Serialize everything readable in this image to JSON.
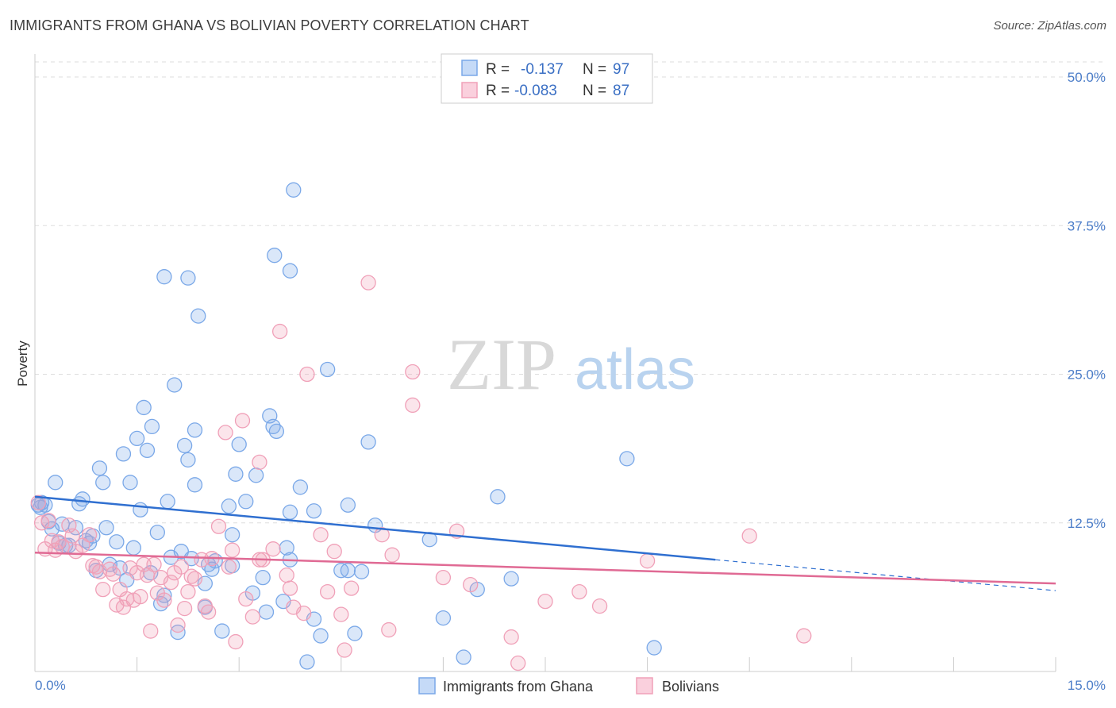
{
  "title": "IMMIGRANTS FROM GHANA VS BOLIVIAN POVERTY CORRELATION CHART",
  "source": "Source: ZipAtlas.com",
  "watermark": {
    "zip": "ZIP",
    "atlas": "atlas"
  },
  "legend": {
    "r_label": "R =",
    "n_label": "N =",
    "rows": [
      {
        "r": "-0.137",
        "n": "97"
      },
      {
        "r": "-0.083",
        "n": "87"
      }
    ]
  },
  "chart_data": {
    "type": "scatter",
    "title": "IMMIGRANTS FROM GHANA VS BOLIVIAN POVERTY CORRELATION CHART",
    "xlabel": "",
    "ylabel": "Poverty",
    "xlim": [
      0,
      15
    ],
    "ylim": [
      0,
      50
    ],
    "x_ticks": [
      "0.0%",
      "15.0%"
    ],
    "y_ticks": [
      {
        "value": 12.5,
        "label": "12.5%"
      },
      {
        "value": 25,
        "label": "25.0%"
      },
      {
        "value": 37.5,
        "label": "37.5%"
      },
      {
        "value": 50,
        "label": "50.0%"
      }
    ],
    "grid": true,
    "legend_position": "bottom",
    "series": [
      {
        "name": "Immigrants from Ghana",
        "color": "#7aa8e8",
        "line_color": "#2f6fd0",
        "trend": {
          "x0": 0,
          "y0": 14.7,
          "x1": 10.0,
          "y1": 9.4,
          "dash_x1": 15.0,
          "dash_y1": 6.8
        },
        "points": [
          [
            0.05,
            14.0
          ],
          [
            0.08,
            13.8
          ],
          [
            0.1,
            14.2
          ],
          [
            0.15,
            14.0
          ],
          [
            0.2,
            12.6
          ],
          [
            0.25,
            12.0
          ],
          [
            0.3,
            15.9
          ],
          [
            0.35,
            10.8
          ],
          [
            0.4,
            12.4
          ],
          [
            0.45,
            10.6
          ],
          [
            0.5,
            10.6
          ],
          [
            0.6,
            12.1
          ],
          [
            0.65,
            14.1
          ],
          [
            0.7,
            14.5
          ],
          [
            0.75,
            11.0
          ],
          [
            0.8,
            10.8
          ],
          [
            0.85,
            11.4
          ],
          [
            0.9,
            8.5
          ],
          [
            0.95,
            17.1
          ],
          [
            1.0,
            15.9
          ],
          [
            1.05,
            12.1
          ],
          [
            1.1,
            9.0
          ],
          [
            1.2,
            10.9
          ],
          [
            1.25,
            8.7
          ],
          [
            1.3,
            18.3
          ],
          [
            1.35,
            7.7
          ],
          [
            1.4,
            15.9
          ],
          [
            1.45,
            10.4
          ],
          [
            1.5,
            19.6
          ],
          [
            1.55,
            13.6
          ],
          [
            1.6,
            22.2
          ],
          [
            1.65,
            18.6
          ],
          [
            1.7,
            8.3
          ],
          [
            1.72,
            20.6
          ],
          [
            1.8,
            11.7
          ],
          [
            1.85,
            5.7
          ],
          [
            1.9,
            6.4
          ],
          [
            1.9,
            33.2
          ],
          [
            1.95,
            14.3
          ],
          [
            2.0,
            9.6
          ],
          [
            2.05,
            24.1
          ],
          [
            2.1,
            3.3
          ],
          [
            2.15,
            10.1
          ],
          [
            2.2,
            19.0
          ],
          [
            2.25,
            33.1
          ],
          [
            2.25,
            17.8
          ],
          [
            2.3,
            9.5
          ],
          [
            2.35,
            20.3
          ],
          [
            2.35,
            15.7
          ],
          [
            2.4,
            29.9
          ],
          [
            2.5,
            7.4
          ],
          [
            2.5,
            5.4
          ],
          [
            2.55,
            9.0
          ],
          [
            2.6,
            8.6
          ],
          [
            2.65,
            9.3
          ],
          [
            2.75,
            3.4
          ],
          [
            2.85,
            13.9
          ],
          [
            2.9,
            11.5
          ],
          [
            2.9,
            8.9
          ],
          [
            2.95,
            16.6
          ],
          [
            3.0,
            19.1
          ],
          [
            3.1,
            14.3
          ],
          [
            3.2,
            6.6
          ],
          [
            3.25,
            16.5
          ],
          [
            3.35,
            7.9
          ],
          [
            3.4,
            5.0
          ],
          [
            3.45,
            21.5
          ],
          [
            3.5,
            20.6
          ],
          [
            3.52,
            35.0
          ],
          [
            3.55,
            20.2
          ],
          [
            3.65,
            5.9
          ],
          [
            3.75,
            13.4
          ],
          [
            3.75,
            33.7
          ],
          [
            3.8,
            40.5
          ],
          [
            3.9,
            15.5
          ],
          [
            4.0,
            0.8
          ],
          [
            4.1,
            4.4
          ],
          [
            4.2,
            3.0
          ],
          [
            4.3,
            25.4
          ],
          [
            4.1,
            13.5
          ],
          [
            4.5,
            8.5
          ],
          [
            4.6,
            14.0
          ],
          [
            4.6,
            8.5
          ],
          [
            4.7,
            3.2
          ],
          [
            4.8,
            8.4
          ],
          [
            4.9,
            19.3
          ],
          [
            5.0,
            12.3
          ],
          [
            5.8,
            11.1
          ],
          [
            6.0,
            4.5
          ],
          [
            6.3,
            1.2
          ],
          [
            6.5,
            6.9
          ],
          [
            6.8,
            14.7
          ],
          [
            7.0,
            7.8
          ],
          [
            8.7,
            17.9
          ],
          [
            9.1,
            2.0
          ],
          [
            3.75,
            9.4
          ],
          [
            3.7,
            10.4
          ]
        ]
      },
      {
        "name": "Bolivians",
        "color": "#f0a0b8",
        "line_color": "#e06a94",
        "trend": {
          "x0": 0,
          "y0": 10.0,
          "x1": 15.0,
          "y1": 7.4
        },
        "points": [
          [
            0.05,
            14.2
          ],
          [
            0.1,
            12.5
          ],
          [
            0.15,
            10.3
          ],
          [
            0.2,
            12.7
          ],
          [
            0.25,
            11.0
          ],
          [
            0.3,
            10.2
          ],
          [
            0.35,
            10.9
          ],
          [
            0.4,
            10.5
          ],
          [
            0.5,
            12.3
          ],
          [
            0.55,
            11.4
          ],
          [
            0.6,
            10.1
          ],
          [
            0.7,
            10.6
          ],
          [
            0.8,
            11.5
          ],
          [
            0.85,
            8.9
          ],
          [
            0.9,
            8.8
          ],
          [
            0.95,
            8.4
          ],
          [
            1.0,
            6.9
          ],
          [
            1.1,
            8.6
          ],
          [
            1.15,
            8.2
          ],
          [
            1.2,
            5.6
          ],
          [
            1.25,
            6.9
          ],
          [
            1.3,
            5.4
          ],
          [
            1.35,
            6.1
          ],
          [
            1.4,
            8.7
          ],
          [
            1.45,
            6.0
          ],
          [
            1.5,
            8.3
          ],
          [
            1.55,
            6.3
          ],
          [
            1.6,
            9.0
          ],
          [
            1.65,
            8.1
          ],
          [
            1.7,
            3.4
          ],
          [
            1.75,
            9.0
          ],
          [
            1.8,
            6.6
          ],
          [
            1.85,
            7.9
          ],
          [
            1.9,
            6.0
          ],
          [
            2.0,
            7.5
          ],
          [
            2.05,
            8.3
          ],
          [
            2.1,
            3.9
          ],
          [
            2.15,
            8.8
          ],
          [
            2.2,
            5.3
          ],
          [
            2.25,
            6.7
          ],
          [
            2.3,
            8.0
          ],
          [
            2.35,
            7.8
          ],
          [
            2.45,
            9.4
          ],
          [
            2.5,
            5.5
          ],
          [
            2.55,
            5.0
          ],
          [
            2.6,
            9.5
          ],
          [
            2.7,
            12.2
          ],
          [
            2.8,
            20.1
          ],
          [
            2.85,
            8.8
          ],
          [
            2.9,
            10.2
          ],
          [
            2.95,
            2.5
          ],
          [
            3.05,
            21.1
          ],
          [
            3.1,
            6.1
          ],
          [
            3.2,
            4.6
          ],
          [
            3.3,
            9.4
          ],
          [
            3.3,
            17.6
          ],
          [
            3.35,
            9.4
          ],
          [
            3.5,
            10.3
          ],
          [
            3.6,
            28.6
          ],
          [
            3.7,
            8.1
          ],
          [
            3.75,
            7.0
          ],
          [
            3.8,
            5.4
          ],
          [
            3.95,
            4.9
          ],
          [
            4.0,
            25.0
          ],
          [
            4.2,
            11.5
          ],
          [
            4.3,
            6.7
          ],
          [
            4.4,
            10.1
          ],
          [
            4.5,
            4.8
          ],
          [
            4.55,
            1.8
          ],
          [
            4.65,
            7.0
          ],
          [
            4.9,
            32.7
          ],
          [
            5.1,
            11.5
          ],
          [
            5.2,
            3.5
          ],
          [
            5.25,
            9.8
          ],
          [
            5.55,
            25.2
          ],
          [
            5.55,
            22.4
          ],
          [
            6.0,
            7.9
          ],
          [
            6.2,
            11.8
          ],
          [
            6.4,
            7.3
          ],
          [
            7.0,
            2.9
          ],
          [
            7.1,
            0.7
          ],
          [
            7.5,
            5.9
          ],
          [
            8.0,
            6.7
          ],
          [
            8.3,
            5.5
          ],
          [
            9.0,
            9.3
          ],
          [
            10.5,
            11.4
          ],
          [
            11.3,
            3.0
          ]
        ]
      }
    ]
  }
}
